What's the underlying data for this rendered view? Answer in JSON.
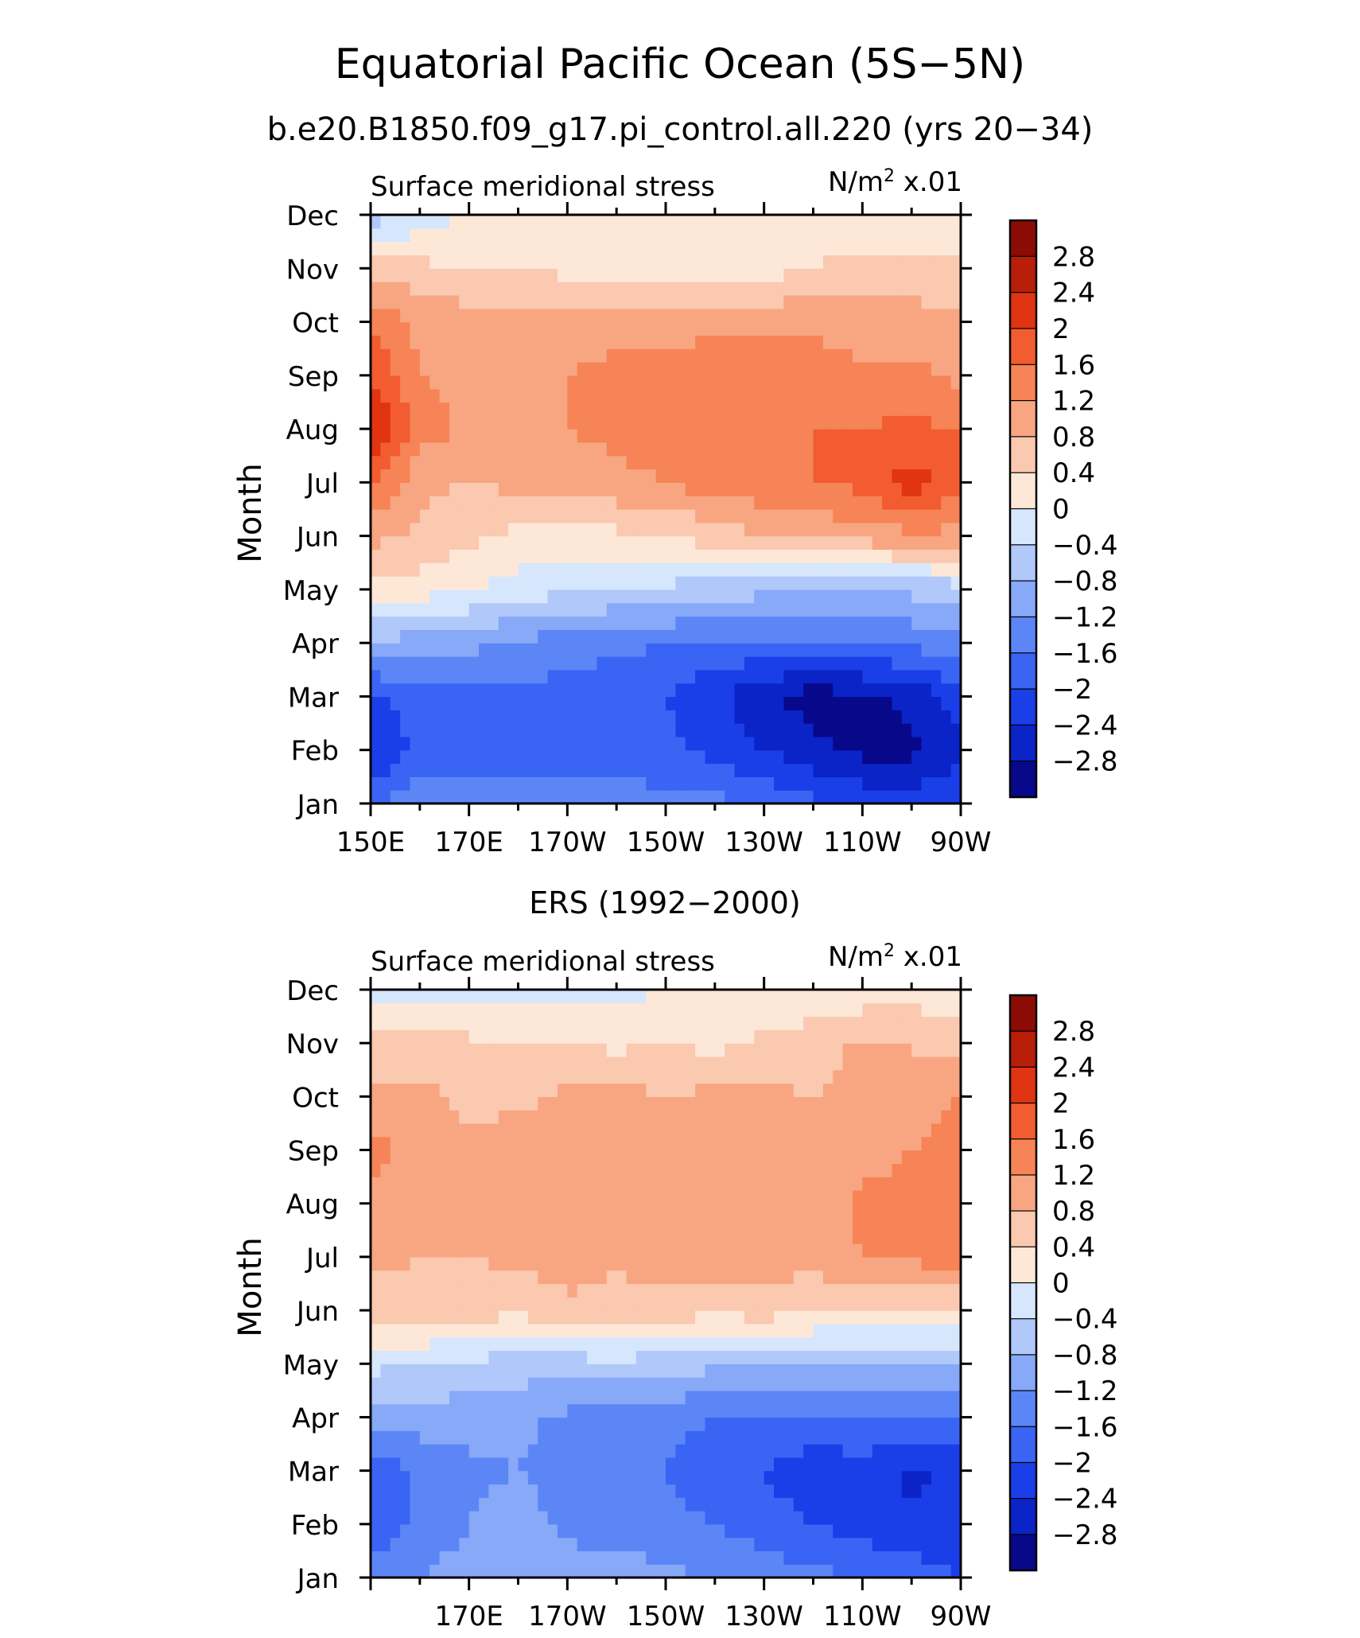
{
  "figure": {
    "title": "Equatorial Pacific Ocean (5S−5N)",
    "subtitle": "b.e20.B1850.f09_g17.pi_control.all.220 (yrs 20−34)"
  },
  "chart_data": [
    {
      "type": "heatmap",
      "panel_title": "",
      "left_label": "Surface meridional stress",
      "right_label_main": "N/m",
      "right_label_sup": "2",
      "right_label_tail": " x.01",
      "xlabel": "",
      "ylabel": "Month",
      "x_ticks": [
        "150E",
        "170E",
        "170W",
        "150W",
        "130W",
        "110W",
        "90W"
      ],
      "y_ticks": [
        "Jan",
        "Feb",
        "Mar",
        "Apr",
        "May",
        "Jun",
        "Jul",
        "Aug",
        "Sep",
        "Oct",
        "Nov",
        "Dec"
      ],
      "x": [
        150,
        160,
        170,
        180,
        190,
        200,
        210,
        220,
        230,
        240,
        250,
        260,
        270
      ],
      "y": [
        1,
        2,
        3,
        4,
        5,
        6,
        7,
        8,
        9,
        10,
        11,
        12
      ],
      "z": [
        [
          -1.7,
          -1.2,
          -1.3,
          -1.3,
          -1.4,
          -1.4,
          -1.5,
          -1.5,
          -1.7,
          -1.9,
          -2.1,
          -2.2,
          -2.1
        ],
        [
          -2.5,
          -1.9,
          -1.8,
          -1.8,
          -1.8,
          -1.8,
          -1.9,
          -2.1,
          -2.4,
          -2.7,
          -2.9,
          -2.9,
          -2.5
        ],
        [
          -2.1,
          -1.7,
          -1.7,
          -1.7,
          -1.8,
          -1.9,
          -2.0,
          -2.3,
          -2.7,
          -3.0,
          -2.9,
          -2.7,
          -2.2
        ],
        [
          -0.9,
          -1.0,
          -1.1,
          -1.3,
          -1.4,
          -1.5,
          -1.6,
          -1.7,
          -1.7,
          -1.7,
          -1.6,
          -1.5,
          -1.3
        ],
        [
          0.3,
          0.2,
          0.0,
          -0.2,
          -0.3,
          -0.4,
          -0.5,
          -0.6,
          -0.7,
          -0.7,
          -0.7,
          -0.7,
          -0.6
        ],
        [
          0.9,
          0.7,
          0.5,
          0.3,
          0.2,
          0.3,
          0.4,
          0.6,
          0.8,
          0.9,
          1.0,
          1.1,
          1.1
        ],
        [
          1.7,
          0.9,
          0.8,
          0.9,
          1.0,
          1.1,
          1.2,
          1.4,
          1.5,
          1.6,
          1.7,
          2.2,
          1.7
        ],
        [
          2.5,
          1.4,
          1.1,
          1.1,
          1.2,
          1.3,
          1.4,
          1.5,
          1.5,
          1.6,
          1.6,
          1.7,
          1.6
        ],
        [
          2.0,
          1.2,
          1.1,
          1.2,
          1.2,
          1.3,
          1.3,
          1.4,
          1.4,
          1.4,
          1.3,
          1.3,
          1.1
        ],
        [
          1.6,
          1.1,
          1.0,
          1.0,
          1.0,
          1.1,
          1.1,
          1.1,
          1.1,
          1.1,
          1.0,
          1.0,
          0.9
        ],
        [
          0.6,
          0.5,
          0.4,
          0.4,
          0.3,
          0.2,
          0.1,
          0.1,
          0.2,
          0.4,
          0.5,
          0.5,
          0.5
        ],
        [
          -0.6,
          -0.2,
          0.0,
          0.1,
          0.2,
          0.3,
          0.3,
          0.3,
          0.2,
          0.2,
          0.2,
          0.2,
          0.1
        ]
      ],
      "xlim": [
        150,
        270
      ],
      "ylim": [
        1,
        12
      ]
    },
    {
      "type": "heatmap",
      "panel_title": "ERS (1992−2000)",
      "left_label": "Surface meridional stress",
      "right_label_main": "N/m",
      "right_label_sup": "2",
      "right_label_tail": " x.01",
      "xlabel": "",
      "ylabel": "Month",
      "x_ticks": [
        "",
        "170E",
        "170W",
        "150W",
        "130W",
        "110W",
        "90W"
      ],
      "y_ticks": [
        "Jan",
        "Feb",
        "Mar",
        "Apr",
        "May",
        "Jun",
        "Jul",
        "Aug",
        "Sep",
        "Oct",
        "Nov",
        "Dec"
      ],
      "x": [
        150,
        160,
        170,
        180,
        190,
        200,
        210,
        220,
        230,
        240,
        250,
        260,
        270
      ],
      "y": [
        1,
        2,
        3,
        4,
        5,
        6,
        7,
        8,
        9,
        10,
        11,
        12
      ],
      "z": [
        [
          -1.4,
          -1.2,
          -1.0,
          -0.9,
          -1.0,
          -1.0,
          -1.1,
          -1.2,
          -1.4,
          -1.5,
          -1.6,
          -1.8,
          -2.0
        ],
        [
          -1.9,
          -1.5,
          -1.2,
          -1.0,
          -1.3,
          -1.4,
          -1.5,
          -1.6,
          -1.8,
          -2.0,
          -2.2,
          -2.3,
          -2.2
        ],
        [
          -2.0,
          -1.5,
          -1.3,
          -1.2,
          -1.4,
          -1.5,
          -1.6,
          -1.9,
          -2.0,
          -2.3,
          -2.2,
          -2.5,
          -2.3
        ],
        [
          -1.0,
          -1.0,
          -1.0,
          -1.1,
          -1.3,
          -1.3,
          -1.5,
          -1.6,
          -1.6,
          -1.6,
          -1.6,
          -1.7,
          -1.6
        ],
        [
          -0.3,
          -0.4,
          -0.5,
          -0.6,
          -0.6,
          -0.5,
          -0.6,
          -0.7,
          -0.7,
          -0.7,
          -0.8,
          -0.8,
          -0.8
        ],
        [
          0.6,
          0.7,
          0.6,
          0.5,
          0.7,
          0.6,
          0.6,
          0.5,
          0.6,
          0.4,
          0.3,
          0.3,
          0.3
        ],
        [
          0.9,
          0.8,
          0.8,
          0.9,
          1.0,
          0.9,
          1.0,
          1.1,
          1.0,
          1.0,
          1.2,
          1.3,
          1.5
        ],
        [
          1.0,
          0.9,
          0.8,
          0.9,
          1.1,
          1.0,
          1.2,
          1.1,
          1.0,
          0.9,
          1.3,
          1.4,
          1.6
        ],
        [
          1.4,
          1.0,
          0.9,
          1.0,
          1.2,
          1.1,
          1.0,
          1.2,
          1.2,
          1.0,
          1.0,
          1.2,
          1.5
        ],
        [
          0.9,
          0.9,
          0.7,
          0.7,
          0.9,
          1.0,
          0.8,
          0.9,
          0.9,
          0.8,
          0.9,
          0.8,
          1.3
        ],
        [
          0.5,
          0.6,
          0.5,
          0.4,
          0.4,
          0.3,
          0.4,
          0.3,
          0.5,
          0.6,
          0.9,
          0.8,
          0.7
        ],
        [
          -0.2,
          -0.2,
          -0.3,
          -0.2,
          -0.1,
          -0.1,
          0.0,
          0.1,
          0.1,
          0.1,
          0.1,
          0.2,
          0.1
        ]
      ],
      "xlim": [
        150,
        270
      ],
      "ylim": [
        1,
        12
      ]
    }
  ],
  "colorbar": {
    "labels": [
      "2.8",
      "2.4",
      "2",
      "1.6",
      "1.2",
      "0.8",
      "0.4",
      "0",
      "−0.4",
      "−0.8",
      "−1.2",
      "−1.6",
      "−2",
      "−2.4",
      "−2.8"
    ],
    "levels": [
      -2.8,
      -2.4,
      -2.0,
      -1.6,
      -1.2,
      -0.8,
      -0.4,
      0.0,
      0.4,
      0.8,
      1.2,
      1.6,
      2.0,
      2.4,
      2.8
    ],
    "colors": [
      "#08088a",
      "#0a24c8",
      "#1a3ee8",
      "#3a64f4",
      "#5c86f6",
      "#88a8f8",
      "#b0c8fa",
      "#d6e6fc",
      "#fde8d8",
      "#fbc8b0",
      "#f8a682",
      "#f68456",
      "#f25c30",
      "#e03412",
      "#b81e08",
      "#8a0c04"
    ]
  }
}
